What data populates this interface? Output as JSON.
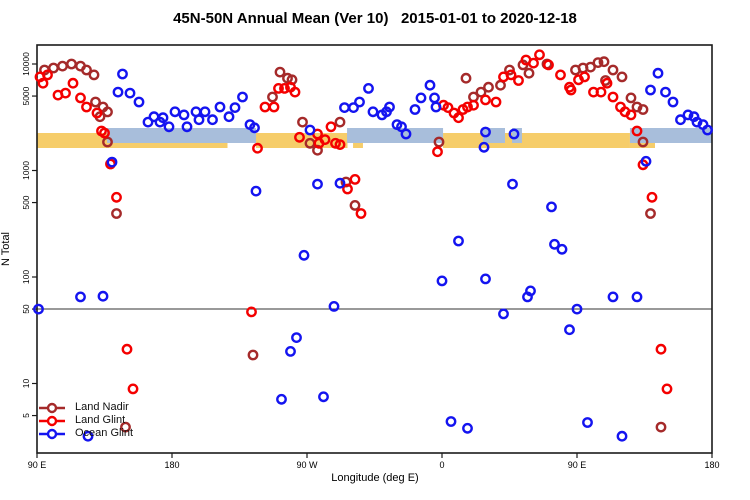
{
  "title": "45N-50N Annual Mean (Ver 10)   2015-01-01 to 2020-12-18",
  "legend": {
    "items": [
      {
        "label": "Land Nadir",
        "color": "#A52A2A"
      },
      {
        "label": "Land Glint",
        "color": "#F40000"
      },
      {
        "label": "Ocean Glint",
        "color": "#1414F0"
      }
    ]
  },
  "chart_data": {
    "type": "scatter",
    "title": "45N-50N Annual Mean (Ver 10)   2015-01-01 to 2020-12-18",
    "x_axis": {
      "label": "Longitude (deg E)",
      "range_deg_from_left": [
        0,
        450
      ],
      "ticks": [
        {
          "pos": 0,
          "label": "90 E"
        },
        {
          "pos": 90,
          "label": "180"
        },
        {
          "pos": 180,
          "label": "90 W"
        },
        {
          "pos": 270,
          "label": "0"
        },
        {
          "pos": 360,
          "label": "90 E"
        },
        {
          "pos": 450,
          "label": "180"
        }
      ]
    },
    "y_axis": {
      "label": "N Total",
      "scale": "log",
      "tick_values": [
        10000,
        5000,
        1000,
        500,
        100,
        50,
        10,
        5
      ]
    },
    "reference_line_y": 50,
    "surface_strip": {
      "land_color": "#F6CD6A",
      "ocean_color": "#A8BEDB",
      "land_segments_deg": [
        [
          0,
          127
        ],
        [
          146,
          207
        ],
        [
          210.7,
          217.3
        ],
        [
          270.7,
          395.3
        ],
        [
          395.3,
          412
        ]
      ],
      "ocean_segments_deg": [
        [
          46.7,
          146
        ],
        [
          206.7,
          270.7
        ],
        [
          297.3,
          312
        ],
        [
          316.7,
          323.3
        ],
        [
          395.3,
          450
        ]
      ]
    },
    "series": [
      {
        "name": "Land Nadir",
        "color": "#A52A2A",
        "points": [
          [
            5,
            8790
          ],
          [
            11,
            9170
          ],
          [
            17,
            9560
          ],
          [
            23,
            10000
          ],
          [
            29,
            9560
          ],
          [
            33,
            8790
          ],
          [
            38,
            7900
          ],
          [
            39,
            4400
          ],
          [
            44,
            3950
          ],
          [
            47,
            3550
          ],
          [
            42,
            3200
          ],
          [
            47,
            1850
          ],
          [
            53,
            395
          ],
          [
            59,
            3.9
          ],
          [
            144,
            18.5
          ],
          [
            157,
            4900
          ],
          [
            162,
            8400
          ],
          [
            167,
            7350
          ],
          [
            170,
            7100
          ],
          [
            177,
            2850
          ],
          [
            182,
            1800
          ],
          [
            187,
            1550
          ],
          [
            202,
            2850
          ],
          [
            206,
            780
          ],
          [
            212,
            470
          ],
          [
            268,
            1850
          ],
          [
            286,
            7350
          ],
          [
            291,
            4900
          ],
          [
            296,
            5450
          ],
          [
            301,
            6050
          ],
          [
            309,
            6330
          ],
          [
            315,
            8790
          ],
          [
            324,
            9800
          ],
          [
            328,
            8200
          ],
          [
            340,
            10000
          ],
          [
            359,
            8790
          ],
          [
            364,
            9170
          ],
          [
            369,
            9360
          ],
          [
            374,
            10300
          ],
          [
            378,
            10500
          ],
          [
            384,
            8790
          ],
          [
            379,
            7000
          ],
          [
            390,
            7560
          ],
          [
            396,
            4800
          ],
          [
            400,
            3950
          ],
          [
            404,
            3740
          ],
          [
            404,
            1850
          ],
          [
            409,
            395
          ],
          [
            416,
            3.9
          ]
        ]
      },
      {
        "name": "Land Glint",
        "color": "#F40000",
        "points": [
          [
            2,
            7560
          ],
          [
            7,
            7900
          ],
          [
            4,
            6600
          ],
          [
            14,
            5100
          ],
          [
            19,
            5330
          ],
          [
            24,
            6600
          ],
          [
            29,
            4800
          ],
          [
            33,
            3950
          ],
          [
            40,
            3470
          ],
          [
            43,
            2350
          ],
          [
            45,
            2250
          ],
          [
            49,
            1150
          ],
          [
            53,
            560
          ],
          [
            60,
            21
          ],
          [
            64,
            8.9
          ],
          [
            143,
            47
          ],
          [
            147,
            1620
          ],
          [
            152,
            3950
          ],
          [
            158,
            3950
          ],
          [
            161,
            5900
          ],
          [
            165,
            5900
          ],
          [
            169,
            6050
          ],
          [
            172,
            5450
          ],
          [
            175,
            2050
          ],
          [
            187,
            2200
          ],
          [
            188,
            1800
          ],
          [
            192,
            1950
          ],
          [
            196,
            2570
          ],
          [
            199,
            1800
          ],
          [
            202,
            1750
          ],
          [
            207,
            670
          ],
          [
            212,
            825
          ],
          [
            216,
            395
          ],
          [
            267,
            1500
          ],
          [
            271,
            4100
          ],
          [
            274,
            3900
          ],
          [
            278,
            3470
          ],
          [
            281,
            3130
          ],
          [
            284,
            3740
          ],
          [
            287,
            3950
          ],
          [
            291,
            4100
          ],
          [
            299,
            4600
          ],
          [
            306,
            4400
          ],
          [
            311,
            7560
          ],
          [
            316,
            7900
          ],
          [
            321,
            7000
          ],
          [
            326,
            10900
          ],
          [
            331,
            10200
          ],
          [
            335,
            12200
          ],
          [
            341,
            9800
          ],
          [
            349,
            7900
          ],
          [
            355,
            6050
          ],
          [
            356,
            5700
          ],
          [
            361,
            7100
          ],
          [
            365,
            7560
          ],
          [
            371,
            5450
          ],
          [
            376,
            5450
          ],
          [
            380,
            6600
          ],
          [
            384,
            4900
          ],
          [
            389,
            3950
          ],
          [
            392,
            3560
          ],
          [
            396,
            3330
          ],
          [
            400,
            2350
          ],
          [
            404,
            1130
          ],
          [
            410,
            560
          ],
          [
            416,
            21
          ],
          [
            420,
            8.9
          ]
        ]
      },
      {
        "name": "Ocean Glint",
        "color": "#1414F0",
        "points": [
          [
            57,
            8050
          ],
          [
            54,
            5450
          ],
          [
            62,
            5330
          ],
          [
            68,
            4400
          ],
          [
            74,
            2850
          ],
          [
            78,
            3200
          ],
          [
            82,
            2850
          ],
          [
            84,
            3130
          ],
          [
            88,
            2570
          ],
          [
            92,
            3560
          ],
          [
            98,
            3330
          ],
          [
            100,
            2570
          ],
          [
            106,
            3560
          ],
          [
            108,
            3000
          ],
          [
            112,
            3560
          ],
          [
            117,
            3000
          ],
          [
            122,
            3950
          ],
          [
            128,
            3200
          ],
          [
            132,
            3900
          ],
          [
            137,
            4900
          ],
          [
            142,
            2700
          ],
          [
            145,
            2520
          ],
          [
            182,
            2400
          ],
          [
            205,
            3900
          ],
          [
            211,
            3900
          ],
          [
            215,
            4400
          ],
          [
            221,
            5900
          ],
          [
            224,
            3560
          ],
          [
            230,
            3330
          ],
          [
            233,
            3560
          ],
          [
            235,
            3950
          ],
          [
            240,
            2700
          ],
          [
            243,
            2570
          ],
          [
            246,
            2200
          ],
          [
            252,
            3740
          ],
          [
            256,
            4800
          ],
          [
            262,
            6330
          ],
          [
            265,
            4800
          ],
          [
            266,
            3950
          ],
          [
            299,
            2300
          ],
          [
            298,
            1650
          ],
          [
            318,
            2200
          ],
          [
            409,
            5700
          ],
          [
            414,
            8200
          ],
          [
            419,
            5450
          ],
          [
            424,
            4400
          ],
          [
            429,
            3000
          ],
          [
            434,
            3330
          ],
          [
            438,
            3200
          ],
          [
            440,
            2850
          ],
          [
            444,
            2700
          ],
          [
            447,
            2400
          ],
          [
            1,
            50
          ],
          [
            29,
            65
          ],
          [
            44,
            66
          ],
          [
            50,
            1200
          ],
          [
            146,
            640
          ],
          [
            187,
            745
          ],
          [
            202,
            760
          ],
          [
            178,
            160
          ],
          [
            270,
            92
          ],
          [
            299,
            96
          ],
          [
            198,
            53
          ],
          [
            173,
            27
          ],
          [
            169,
            20
          ],
          [
            163,
            7.1
          ],
          [
            191,
            7.5
          ],
          [
            276,
            4.4
          ],
          [
            287,
            3.8
          ],
          [
            281,
            218
          ],
          [
            406,
            1220
          ],
          [
            317,
            745
          ],
          [
            343,
            455
          ],
          [
            345,
            203
          ],
          [
            350,
            182
          ],
          [
            329,
            74
          ],
          [
            327,
            65
          ],
          [
            384,
            65
          ],
          [
            400,
            65
          ],
          [
            311,
            45
          ],
          [
            360,
            50
          ],
          [
            355,
            32
          ],
          [
            367,
            4.3
          ],
          [
            390,
            3.2
          ],
          [
            34,
            3.2
          ]
        ]
      }
    ]
  }
}
